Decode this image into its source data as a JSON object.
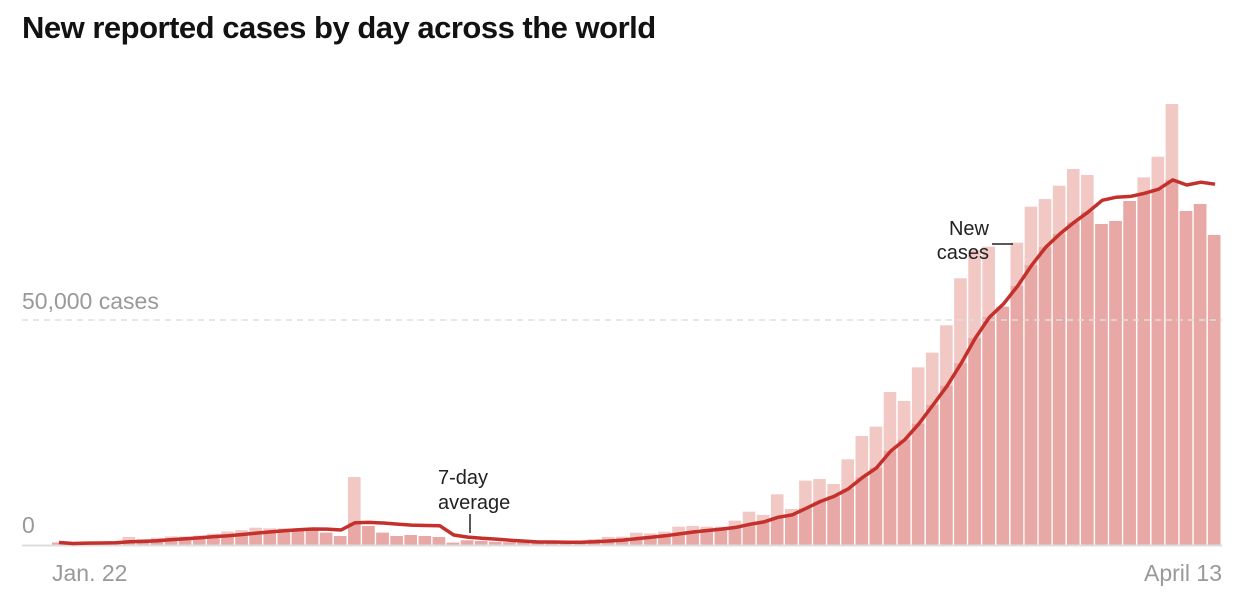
{
  "chart_data": {
    "type": "bar",
    "title": "New reported cases by day across the world",
    "xlabel": "",
    "ylabel": "",
    "x_tick_labels": [
      "Jan. 22",
      "April 13"
    ],
    "y_ticks": [
      {
        "value": 0,
        "label": "0"
      },
      {
        "value": 50000,
        "label": "50,000 cases"
      }
    ],
    "ylim": [
      0,
      100000
    ],
    "grid": "dashed line at 50,000",
    "colors": {
      "bar_light": "#f2c8c5",
      "bar_dark": "#e8a8a5",
      "line": "#c4302b",
      "grid": "#dddddd",
      "axis": "#dddddd"
    },
    "annotations": {
      "avg_line1": "7-day",
      "avg_line2": "average",
      "new_line1": "New",
      "new_line2": "cases"
    },
    "series": [
      {
        "name": "New cases",
        "type": "bar",
        "values": [
          550,
          100,
          600,
          500,
          700,
          1800,
          1300,
          1600,
          1900,
          1900,
          2100,
          2500,
          3000,
          3300,
          3850,
          3700,
          3700,
          3700,
          3700,
          2740,
          2000,
          15100,
          4220,
          2740,
          2000,
          2220,
          2000,
          1780,
          520,
          1040,
          900,
          700,
          600,
          500,
          400,
          500,
          700,
          1000,
          1300,
          1800,
          1850,
          2740,
          2590,
          2960,
          4070,
          4220,
          4070,
          4070,
          5410,
          7410,
          6670,
          11260,
          8000,
          14300,
          14670,
          13560,
          19040,
          24220,
          26300,
          34000,
          32000,
          39480,
          42740,
          48820,
          59260,
          65550,
          66290,
          52960,
          67180,
          75180,
          76880,
          79840,
          83550,
          82220,
          71330,
          72000,
          76440,
          81700,
          86290,
          97990,
          74220,
          75770,
          68890
        ]
      },
      {
        "name": "7-day average",
        "type": "line",
        "window": 7
      }
    ]
  }
}
